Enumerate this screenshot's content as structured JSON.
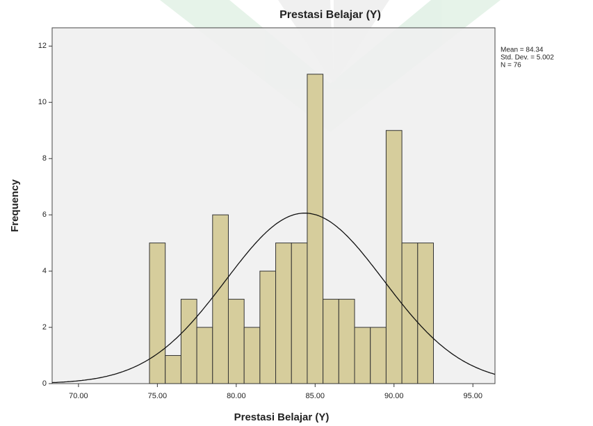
{
  "chart_data": {
    "type": "histogram",
    "title": "Prestasi Belajar (Y)",
    "x_label": "Prestasi Belajar (Y)",
    "y_label": "Frequency",
    "bins": [
      74.5,
      75.5,
      76.5,
      77.5,
      78.5,
      79.5,
      80.5,
      81.5,
      82.5,
      83.5,
      84.5,
      85.5,
      86.5,
      87.5,
      88.5,
      89.5,
      90.5,
      91.5,
      92.5
    ],
    "counts": [
      5,
      1,
      3,
      2,
      6,
      3,
      2,
      4,
      5,
      5,
      11,
      3,
      3,
      2,
      2,
      9,
      5,
      5
    ],
    "color": "#d6cd9c",
    "xlim": [
      68.33,
      96.4
    ],
    "xticks": [
      {
        "value": 70,
        "label": "70.00"
      },
      {
        "value": 75,
        "label": "75.00"
      },
      {
        "value": 80,
        "label": "80.00"
      },
      {
        "value": 85,
        "label": "85.00"
      },
      {
        "value": 90,
        "label": "90.00"
      },
      {
        "value": 95,
        "label": "95.00"
      }
    ],
    "ylim": [
      0,
      12.65
    ],
    "yticks": [
      0,
      2,
      4,
      6,
      8,
      10,
      12
    ],
    "stats": [
      {
        "value": 84.34,
        "label": "Mean = 84.34"
      },
      {
        "value": 5.002,
        "label": "Std. Dev. = 5.002"
      },
      {
        "value": 76,
        "label": "N = 76"
      }
    ]
  }
}
